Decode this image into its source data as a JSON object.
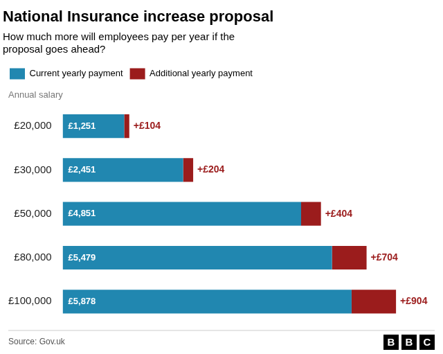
{
  "chart_data": {
    "type": "bar",
    "orientation": "horizontal",
    "stacked": true,
    "title": "National Insurance increase proposal",
    "subtitle": "How much more will employees pay per year if the\nproposal goes ahead?",
    "ylabel": "Annual salary",
    "source": "Source: Gov.uk",
    "annotations": [
      "BBC"
    ],
    "categories": [
      "£20,000",
      "£30,000",
      "£50,000",
      "£80,000",
      "£100,000"
    ],
    "series": [
      {
        "name": "Current yearly payment",
        "color": "#2187b0",
        "values": [
          1251,
          2451,
          4851,
          5479,
          5878
        ],
        "value_labels": [
          "£1,251",
          "£2,451",
          "£4,851",
          "£5,479",
          "£5,878"
        ]
      },
      {
        "name": "Additional yearly payment",
        "color": "#9b1c1c",
        "values": [
          104,
          204,
          404,
          704,
          904
        ],
        "value_labels": [
          "+£104",
          "+£204",
          "+£404",
          "+£704",
          "+£904"
        ]
      }
    ],
    "xlim": [
      0,
      7400
    ],
    "grid": false,
    "legend": "top",
    "data_labels": true,
    "tick_labels": "y"
  }
}
